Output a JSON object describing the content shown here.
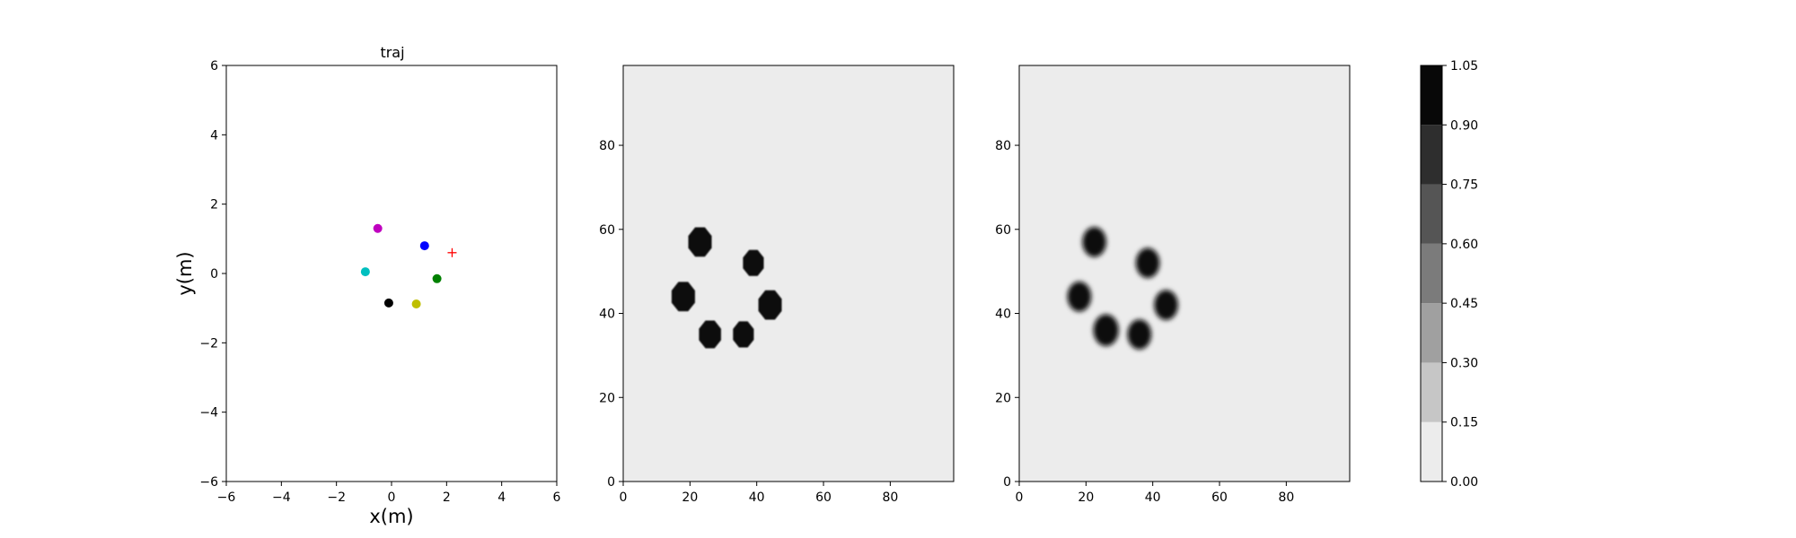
{
  "chart_data": [
    {
      "type": "scatter",
      "title": "traj",
      "xlabel": "x(m)",
      "ylabel": "y(m)",
      "xlim": [
        -6,
        6
      ],
      "ylim": [
        -6,
        6
      ],
      "xticks": [
        -6,
        -4,
        -2,
        0,
        2,
        4,
        6
      ],
      "yticks": [
        -6,
        -4,
        -2,
        0,
        2,
        4,
        6
      ],
      "xtick_labels": [
        "−6",
        "−4",
        "−2",
        "0",
        "2",
        "4",
        "6"
      ],
      "ytick_labels": [
        "−6",
        "−4",
        "−2",
        "0",
        "2",
        "4",
        "6"
      ],
      "grid": false,
      "points": [
        {
          "x": -0.5,
          "y": 1.3,
          "color": "#bf00bf",
          "marker": "circle"
        },
        {
          "x": 1.2,
          "y": 0.8,
          "color": "#0000ff",
          "marker": "circle"
        },
        {
          "x": -0.95,
          "y": 0.05,
          "color": "#00bfbf",
          "marker": "circle"
        },
        {
          "x": 1.65,
          "y": -0.15,
          "color": "#008000",
          "marker": "circle"
        },
        {
          "x": -0.1,
          "y": -0.85,
          "color": "#000000",
          "marker": "circle"
        },
        {
          "x": 0.9,
          "y": -0.88,
          "color": "#bfbf00",
          "marker": "circle"
        }
      ],
      "target": {
        "x": 2.2,
        "y": 0.6,
        "color": "#ff0000",
        "marker": "plus"
      }
    },
    {
      "type": "heatmap",
      "xlim": [
        0,
        99
      ],
      "ylim": [
        0,
        99
      ],
      "xticks": [
        0,
        20,
        40,
        60,
        80
      ],
      "yticks": [
        0,
        20,
        40,
        60,
        80
      ],
      "background_value": 0.05,
      "style": "sharp",
      "blobs": [
        {
          "x": 23,
          "y": 57,
          "r": 3.6,
          "value": 1.0
        },
        {
          "x": 39,
          "y": 52,
          "r": 3.2,
          "value": 1.0
        },
        {
          "x": 18,
          "y": 44,
          "r": 3.6,
          "value": 1.0
        },
        {
          "x": 44,
          "y": 42,
          "r": 3.6,
          "value": 1.0
        },
        {
          "x": 26,
          "y": 35,
          "r": 3.4,
          "value": 1.0
        },
        {
          "x": 36,
          "y": 35,
          "r": 3.2,
          "value": 1.0
        }
      ]
    },
    {
      "type": "heatmap",
      "xlim": [
        0,
        99
      ],
      "ylim": [
        0,
        99
      ],
      "xticks": [
        0,
        20,
        40,
        60,
        80
      ],
      "yticks": [
        0,
        20,
        40,
        60,
        80
      ],
      "background_value": 0.05,
      "style": "soft",
      "blobs": [
        {
          "x": 22.5,
          "y": 57,
          "r": 3.4,
          "value": 1.0
        },
        {
          "x": 38.5,
          "y": 52,
          "r": 3.4,
          "value": 1.0
        },
        {
          "x": 18,
          "y": 44,
          "r": 3.4,
          "value": 1.0
        },
        {
          "x": 44,
          "y": 42,
          "r": 3.4,
          "value": 1.0
        },
        {
          "x": 26,
          "y": 36,
          "r": 3.6,
          "value": 1.0
        },
        {
          "x": 36,
          "y": 35,
          "r": 3.4,
          "value": 1.0
        }
      ]
    }
  ],
  "colorbar": {
    "levels": [
      0.0,
      0.15,
      0.3,
      0.45,
      0.6,
      0.75,
      0.9,
      1.05
    ],
    "tick_labels": [
      "0.00",
      "0.15",
      "0.30",
      "0.45",
      "0.60",
      "0.75",
      "0.90",
      "1.05"
    ],
    "colors": [
      "#ececec",
      "#c6c6c6",
      "#a0a0a0",
      "#7b7b7b",
      "#555555",
      "#2e2e2e",
      "#080808"
    ]
  }
}
